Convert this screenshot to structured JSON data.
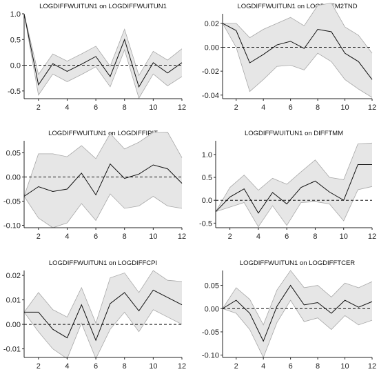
{
  "chart_data": [
    {
      "type": "line",
      "title": "LOGDIFFWUITUN1 on LOGDIFFWUITUN1",
      "x": [
        1,
        2,
        3,
        4,
        5,
        6,
        7,
        8,
        9,
        10,
        11,
        12
      ],
      "ylim": [
        -0.65,
        1.0
      ],
      "yticks": [
        -0.5,
        0.0,
        0.5,
        1.0
      ],
      "ytick_labels": [
        "-0.5",
        "0.0",
        "0.5",
        "1.0"
      ],
      "xticks": [
        2,
        4,
        6,
        8,
        10,
        12
      ],
      "series": [
        {
          "role": "response",
          "values": [
            1.0,
            -0.38,
            0.03,
            -0.12,
            0.02,
            0.17,
            -0.22,
            0.5,
            -0.42,
            0.05,
            -0.15,
            0.05
          ]
        },
        {
          "role": "upper",
          "values": [
            1.0,
            -0.18,
            0.22,
            0.08,
            0.22,
            0.37,
            -0.02,
            0.7,
            -0.2,
            0.27,
            0.1,
            0.32
          ]
        },
        {
          "role": "lower",
          "values": [
            1.0,
            -0.58,
            -0.17,
            -0.32,
            -0.18,
            -0.03,
            -0.42,
            0.3,
            -0.64,
            -0.17,
            -0.4,
            -0.22
          ]
        }
      ]
    },
    {
      "type": "line",
      "title": "LOGDIFFWUITUN1 on LOGDIFFM2TND",
      "x": [
        1,
        2,
        3,
        4,
        5,
        6,
        7,
        8,
        9,
        10,
        11,
        12
      ],
      "ylim": [
        -0.043,
        0.028
      ],
      "yticks": [
        -0.04,
        -0.02,
        0.0,
        0.02
      ],
      "ytick_labels": [
        "-0.04",
        "-0.02",
        "0.00",
        "0.02"
      ],
      "xticks": [
        2,
        4,
        6,
        8,
        10,
        12
      ],
      "series": [
        {
          "role": "response",
          "values": [
            0.02,
            0.014,
            -0.013,
            -0.006,
            0.002,
            0.005,
            -0.001,
            0.015,
            0.013,
            -0.005,
            -0.012,
            -0.027
          ]
        },
        {
          "role": "upper",
          "values": [
            0.02,
            0.02,
            0.008,
            0.015,
            0.02,
            0.025,
            0.018,
            0.035,
            0.037,
            0.017,
            0.01,
            -0.005
          ]
        },
        {
          "role": "lower",
          "values": [
            0.02,
            0.0,
            -0.037,
            -0.027,
            -0.016,
            -0.015,
            -0.019,
            -0.005,
            -0.012,
            -0.027,
            -0.035,
            -0.042
          ]
        }
      ]
    },
    {
      "type": "line",
      "title": "LOGDIFFWUITUN1 on LOGDIFFIPIT",
      "x": [
        1,
        2,
        3,
        4,
        5,
        6,
        7,
        8,
        9,
        10,
        11,
        12
      ],
      "ylim": [
        -0.105,
        0.075
      ],
      "yticks": [
        -0.1,
        -0.05,
        0.0,
        0.05
      ],
      "ytick_labels": [
        "-0.10",
        "-0.05",
        "0.00",
        "0.05"
      ],
      "xticks": [
        2,
        4,
        6,
        8,
        10,
        12
      ],
      "series": [
        {
          "role": "response",
          "values": [
            -0.04,
            -0.02,
            -0.03,
            -0.025,
            0.008,
            -0.037,
            0.027,
            -0.003,
            0.006,
            0.025,
            0.017,
            -0.013
          ]
        },
        {
          "role": "upper",
          "values": [
            -0.04,
            0.048,
            0.048,
            0.042,
            0.065,
            0.038,
            0.09,
            0.058,
            0.072,
            0.092,
            0.093,
            0.04
          ]
        },
        {
          "role": "lower",
          "values": [
            -0.04,
            -0.085,
            -0.105,
            -0.095,
            -0.055,
            -0.09,
            -0.035,
            -0.065,
            -0.06,
            -0.04,
            -0.06,
            -0.065
          ]
        }
      ]
    },
    {
      "type": "line",
      "title": "LOGDIFFWUITUN1 on DIFFTMM",
      "x": [
        1,
        2,
        3,
        4,
        5,
        6,
        7,
        8,
        9,
        10,
        11,
        12
      ],
      "ylim": [
        -0.6,
        1.3
      ],
      "yticks": [
        -0.5,
        0.0,
        0.5,
        1.0
      ],
      "ytick_labels": [
        "-0.5",
        "0.0",
        "0.5",
        "1.0"
      ],
      "xticks": [
        2,
        4,
        6,
        8,
        10,
        12
      ],
      "series": [
        {
          "role": "response",
          "values": [
            -0.25,
            0.07,
            0.25,
            -0.28,
            0.17,
            -0.08,
            0.28,
            0.42,
            0.18,
            0.0,
            0.78,
            0.78
          ]
        },
        {
          "role": "upper",
          "values": [
            -0.25,
            0.28,
            0.55,
            0.22,
            0.48,
            0.35,
            0.62,
            0.88,
            0.5,
            0.45,
            1.23,
            1.25
          ]
        },
        {
          "role": "lower",
          "values": [
            -0.25,
            -0.15,
            -0.05,
            -0.58,
            -0.12,
            -0.55,
            -0.05,
            -0.03,
            -0.08,
            -0.45,
            0.23,
            0.3
          ]
        }
      ]
    },
    {
      "type": "line",
      "title": "LOGDIFFWUITUN1 on LOGDIFFCPI",
      "x": [
        1,
        2,
        3,
        4,
        5,
        6,
        7,
        8,
        9,
        10,
        11,
        12
      ],
      "ylim": [
        -0.0135,
        0.022
      ],
      "yticks": [
        -0.01,
        0.0,
        0.01,
        0.02
      ],
      "ytick_labels": [
        "-0.01",
        "0.00",
        "0.01",
        "0.02"
      ],
      "xticks": [
        2,
        4,
        6,
        8,
        10,
        12
      ],
      "series": [
        {
          "role": "response",
          "values": [
            0.005,
            0.005,
            -0.002,
            -0.0055,
            0.008,
            -0.0065,
            0.0085,
            0.013,
            0.0055,
            0.014,
            0.011,
            0.008
          ]
        },
        {
          "role": "upper",
          "values": [
            0.005,
            0.013,
            0.006,
            0.003,
            0.015,
            0.0005,
            0.019,
            0.021,
            0.013,
            0.022,
            0.018,
            0.0175
          ]
        },
        {
          "role": "lower",
          "values": [
            0.005,
            -0.003,
            -0.01,
            -0.014,
            0.0005,
            -0.014,
            -0.002,
            0.005,
            -0.003,
            0.006,
            0.003,
            0.0
          ]
        }
      ]
    },
    {
      "type": "line",
      "title": "LOGDIFFWUITUN1 on LOGDIFFTCER",
      "x": [
        1,
        2,
        3,
        4,
        5,
        6,
        7,
        8,
        9,
        10,
        11,
        12
      ],
      "ylim": [
        -0.105,
        0.082
      ],
      "yticks": [
        -0.1,
        -0.05,
        0.0,
        0.05
      ],
      "ytick_labels": [
        "-0.10",
        "-0.05",
        "0.00",
        "0.05"
      ],
      "xticks": [
        2,
        4,
        6,
        8,
        10,
        12
      ],
      "series": [
        {
          "role": "response",
          "values": [
            0.0,
            0.018,
            -0.01,
            -0.07,
            0.005,
            0.05,
            0.008,
            0.013,
            -0.01,
            0.018,
            0.003,
            0.015
          ]
        },
        {
          "role": "upper",
          "values": [
            0.0,
            0.045,
            0.02,
            -0.035,
            0.04,
            0.082,
            0.045,
            0.05,
            0.025,
            0.055,
            0.045,
            0.058
          ]
        },
        {
          "role": "lower",
          "values": [
            0.0,
            -0.01,
            -0.045,
            -0.105,
            -0.03,
            0.018,
            -0.028,
            -0.02,
            -0.045,
            -0.015,
            -0.035,
            -0.025
          ]
        }
      ]
    }
  ],
  "colors": {
    "band_fill": "#e6e6e6",
    "band_stroke": "#a8a8a8",
    "line": "#111111",
    "zero_line": "#111111",
    "axis": "#222222"
  }
}
